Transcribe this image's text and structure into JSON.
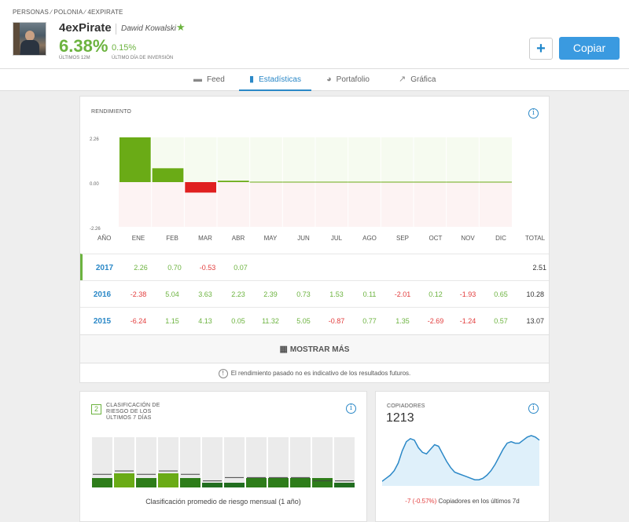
{
  "breadcrumb": "PERSONAS ∕ POLONIA ∕ 4EXPIRATE",
  "profile": {
    "username": "4exPirate",
    "full_name": "Dawid Kowalski",
    "gain": "6.38%",
    "gain_label": "ÚLTIMOS 12M",
    "day_gain": "0.15%",
    "day_label": "ÚLTIMO DÍA DE INVERSIÓN"
  },
  "actions": {
    "plus": "+",
    "copy": "Copiar"
  },
  "tabs": [
    {
      "label": "Feed",
      "icon": "feed-icon"
    },
    {
      "label": "Estadísticas",
      "icon": "stats-icon"
    },
    {
      "label": "Portafolio",
      "icon": "pie-icon"
    },
    {
      "label": "Gráfica",
      "icon": "chart-icon"
    }
  ],
  "performance": {
    "title": "RENDIMIENTO",
    "year_header": "AÑO",
    "total_header": "TOTAL",
    "months": [
      "ENE",
      "FEB",
      "MAR",
      "ABR",
      "MAY",
      "JUN",
      "JUL",
      "AGO",
      "SEP",
      "OCT",
      "NOV",
      "DIC"
    ],
    "rows": [
      {
        "year": "2017",
        "values": [
          "2.26",
          "0.70",
          "-0.53",
          "0.07",
          "",
          "",
          "",
          "",
          "",
          "",
          "",
          ""
        ],
        "total": "2.51"
      },
      {
        "year": "2016",
        "values": [
          "-2.38",
          "5.04",
          "3.63",
          "2.23",
          "2.39",
          "0.73",
          "1.53",
          "0.11",
          "-2.01",
          "0.12",
          "-1.93",
          "0.65"
        ],
        "total": "10.28"
      },
      {
        "year": "2015",
        "values": [
          "-6.24",
          "1.15",
          "4.13",
          "0.05",
          "11.32",
          "5.05",
          "-0.87",
          "0.77",
          "1.35",
          "-2.69",
          "-1.24",
          "0.57"
        ],
        "total": "13.07"
      }
    ],
    "show_more": "MOSTRAR MÁS",
    "disclaimer": "El rendimiento pasado no es indicativo de los resultados futuros."
  },
  "chart_data": [
    {
      "type": "bar",
      "title": "RENDIMIENTO",
      "categories": [
        "ENE",
        "FEB",
        "MAR",
        "ABR",
        "MAY",
        "JUN",
        "JUL",
        "AGO",
        "SEP",
        "OCT",
        "NOV",
        "DIC"
      ],
      "values": [
        2.26,
        0.7,
        -0.53,
        0.07,
        0,
        0,
        0,
        0,
        0,
        0,
        0,
        0
      ],
      "ylim": [
        -2.26,
        2.26
      ],
      "yticks": [
        "2.26",
        "0.00",
        "-2.26"
      ],
      "colors": {
        "positive": "#6aab16",
        "negative": "#e02020"
      }
    },
    {
      "type": "bar",
      "title": "CLASIFICACIÓN DE RIESGO DE LOS ÚLTIMOS 7 DÍAS",
      "categories": [
        "1",
        "2",
        "3",
        "4",
        "5",
        "6",
        "7",
        "8",
        "9",
        "10",
        "11",
        "12"
      ],
      "values": [
        2,
        3,
        2,
        3,
        2,
        1,
        1,
        2,
        2,
        2,
        2,
        1
      ],
      "max_values": [
        4,
        5,
        4,
        5,
        4,
        2,
        3,
        3,
        3,
        3,
        2,
        2
      ],
      "ylim": [
        0,
        10
      ]
    },
    {
      "type": "area",
      "title": "COPIADORES",
      "x": [
        1,
        2,
        3,
        4,
        5,
        6,
        7,
        8,
        9,
        10,
        11,
        12,
        13,
        14,
        15,
        16,
        17,
        18,
        19,
        20,
        21,
        22,
        23,
        24,
        25,
        26,
        27,
        28,
        29,
        30,
        31,
        32,
        33,
        34,
        35,
        36,
        37,
        38,
        39,
        40
      ],
      "values": [
        1020,
        1040,
        1060,
        1090,
        1140,
        1220,
        1280,
        1300,
        1290,
        1240,
        1210,
        1200,
        1230,
        1260,
        1250,
        1200,
        1150,
        1110,
        1080,
        1070,
        1060,
        1050,
        1040,
        1030,
        1030,
        1040,
        1060,
        1090,
        1130,
        1180,
        1230,
        1270,
        1280,
        1270,
        1270,
        1290,
        1310,
        1320,
        1310,
        1290
      ],
      "color": "#2b88c7"
    }
  ],
  "risk": {
    "score": "2",
    "title": "CLASIFICACIÓN DE RIESGO DE LOS ÚLTIMOS 7 DÍAS",
    "caption": "Clasificación promedio de riesgo mensual (1 año)"
  },
  "copiers": {
    "title": "COPIADORES",
    "count": "1213",
    "change": "-7 (-0.57%)",
    "change_text": "Copiadores en los últimos 7d"
  },
  "colors": {
    "accent": "#2b88c7",
    "positive": "#6cb33f",
    "negative": "#e23c3c",
    "copy": "#3a9ae0"
  }
}
